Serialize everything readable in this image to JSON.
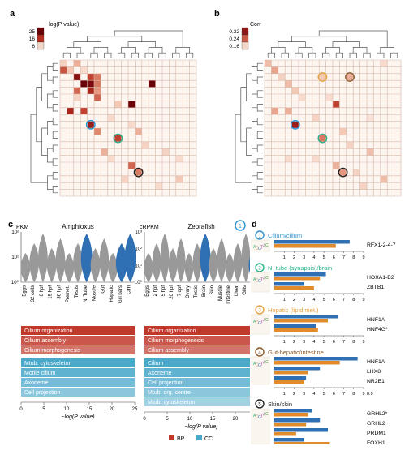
{
  "panel_a": {
    "label": "a",
    "legend_title": "−log(P value)",
    "legend_ticks": [
      "25",
      "16",
      "6"
    ],
    "legend_colors": [
      "#6a0008",
      "#b83024",
      "#f3d6c8"
    ],
    "n": 20,
    "circles": [
      {
        "id": 1,
        "r": 9,
        "c": 4,
        "color": "#2f94d6"
      },
      {
        "id": 2,
        "r": 11,
        "c": 8,
        "color": "#2bb08a"
      },
      {
        "id": 5,
        "r": 16,
        "c": 11,
        "color": "#222"
      }
    ],
    "cells": [
      [
        0,
        0,
        0.2
      ],
      [
        0,
        2,
        0.35
      ],
      [
        1,
        0,
        0.65
      ],
      [
        1,
        1,
        0.25
      ],
      [
        1,
        3,
        0.15
      ],
      [
        2,
        2,
        0.9
      ],
      [
        2,
        4,
        0.7
      ],
      [
        2,
        5,
        0.55
      ],
      [
        3,
        3,
        1.0
      ],
      [
        3,
        4,
        0.95
      ],
      [
        3,
        5,
        0.55
      ],
      [
        3,
        13,
        1.0
      ],
      [
        4,
        2,
        0.6
      ],
      [
        4,
        4,
        0.8
      ],
      [
        4,
        5,
        0.45
      ],
      [
        5,
        2,
        0.2
      ],
      [
        5,
        5,
        0.6
      ],
      [
        6,
        8,
        0.25
      ],
      [
        6,
        10,
        1.0
      ],
      [
        7,
        1,
        0.8
      ],
      [
        7,
        3,
        0.7
      ],
      [
        8,
        7,
        0.15
      ],
      [
        9,
        4,
        0.85
      ],
      [
        9,
        10,
        0.15
      ],
      [
        10,
        5,
        0.5
      ],
      [
        10,
        11,
        0.35
      ],
      [
        11,
        8,
        0.7
      ],
      [
        12,
        12,
        0.2
      ],
      [
        13,
        6,
        0.35
      ],
      [
        13,
        15,
        0.2
      ],
      [
        14,
        7,
        0.15
      ],
      [
        14,
        17,
        0.15
      ],
      [
        15,
        10,
        0.6
      ],
      [
        16,
        11,
        0.55
      ],
      [
        17,
        9,
        0.2
      ],
      [
        17,
        17,
        0.25
      ],
      [
        18,
        14,
        0.15
      ]
    ]
  },
  "panel_b": {
    "label": "b",
    "legend_title": "Corr",
    "legend_ticks": [
      "0.32",
      "0.24",
      "0.16"
    ],
    "legend_colors": [
      "#8c1a1a",
      "#c95a4a",
      "#f3d6c8"
    ],
    "n": 20,
    "circles": [
      {
        "id": 1,
        "r": 9,
        "c": 4,
        "color": "#2f94d6"
      },
      {
        "id": 2,
        "r": 11,
        "c": 8,
        "color": "#2bb08a"
      },
      {
        "id": 3,
        "r": 2,
        "c": 8,
        "color": "#e6a23c"
      },
      {
        "id": 4,
        "r": 2,
        "c": 12,
        "color": "#8c5a2b"
      },
      {
        "id": 5,
        "r": 16,
        "c": 11,
        "color": "#222"
      }
    ],
    "cells": [
      [
        0,
        0,
        0.3
      ],
      [
        1,
        1,
        0.4
      ],
      [
        2,
        2,
        0.2
      ],
      [
        2,
        8,
        0.25
      ],
      [
        2,
        12,
        0.35
      ],
      [
        3,
        3,
        0.3
      ],
      [
        4,
        4,
        0.25
      ],
      [
        5,
        5,
        0.15
      ],
      [
        5,
        9,
        0.15
      ],
      [
        6,
        10,
        0.7
      ],
      [
        7,
        1,
        0.4
      ],
      [
        7,
        3,
        0.35
      ],
      [
        8,
        7,
        0.2
      ],
      [
        8,
        15,
        0.1
      ],
      [
        9,
        4,
        0.85
      ],
      [
        10,
        11,
        0.25
      ],
      [
        11,
        8,
        0.55
      ],
      [
        12,
        12,
        0.2
      ],
      [
        13,
        15,
        0.3
      ],
      [
        14,
        3,
        0.15
      ],
      [
        14,
        7,
        0.15
      ],
      [
        15,
        10,
        0.35
      ],
      [
        16,
        11,
        0.45
      ],
      [
        16,
        13,
        0.2
      ],
      [
        17,
        17,
        0.3
      ],
      [
        18,
        14,
        0.2
      ],
      [
        0,
        17,
        0.15
      ]
    ]
  },
  "panel_c": {
    "label": "c",
    "circle_id": "1",
    "species": [
      {
        "name": "Amphioxus",
        "unit": "PKM",
        "ymax": 100,
        "ticks": [
          "10⁰",
          "10¹",
          "10²"
        ],
        "cats": [
          "Eggs",
          "32 cells",
          "8 hpf",
          "15 hpf",
          "36 hpf",
          "Premet.",
          "Testis",
          "N. Tube",
          "Muscle",
          "Gut",
          "Hepatic",
          "Gill bars",
          "Cirri"
        ],
        "hl": [
          7,
          11,
          12
        ],
        "go": {
          "bp": [
            "Cilium organization",
            "Cilium assembly",
            "Cilium morphogenesis"
          ],
          "cc": [
            "Mtub. cytoskeleton",
            "Motile cilium",
            "Axoneme",
            "Cell projection"
          ]
        }
      },
      {
        "name": "Zebrafish",
        "unit": "cRPKM",
        "ymax": 1000,
        "ticks": [
          "10⁰",
          "10¹",
          "10²",
          "10³"
        ],
        "cats": [
          "Eggs",
          "2 hpf",
          "5 hpf",
          "20 hpf",
          "7 dpf",
          "Ovary",
          "Testis",
          "Brain",
          "Skin",
          "Muscle",
          "Intestine",
          "Liver",
          "Gills",
          "Sperm"
        ],
        "hl": [
          7,
          13
        ],
        "go": {
          "bp": [
            "Cilium organization",
            "Cilium morphogenesis",
            "Cilium assembly"
          ],
          "cc": [
            "Cilium",
            "Axoneme",
            "Cell projection",
            "Mtub. org. centre",
            "Mtub. cytoskeleton"
          ]
        }
      }
    ],
    "xaxis": "−log(P value)",
    "xaxis_max": 25,
    "xaxis_ticks": [
      0,
      5,
      10,
      15,
      20,
      25
    ],
    "legend": [
      {
        "label": "BP",
        "color": "#c0392b"
      },
      {
        "label": "CC",
        "color": "#4aa8c9"
      }
    ]
  },
  "panel_d": {
    "label": "d",
    "xaxis": "z-score",
    "xaxis_ticks": [
      1,
      2,
      3,
      4,
      5,
      6,
      7,
      8,
      9
    ],
    "groups": [
      {
        "id": 1,
        "color": "#2f94d6",
        "title": "Cilium/cilium",
        "b": [
          7.6
        ],
        "o": [
          6.2
        ],
        "tf": [
          "RFX1-2-4-7"
        ]
      },
      {
        "id": 2,
        "color": "#2bb08a",
        "title": "N. tube (synapsis)/brain",
        "b": [
          5.2,
          3.0
        ],
        "o": [
          4.6,
          4.0
        ],
        "tf": [
          "HOXA1-B2",
          "ZBTB1"
        ]
      },
      {
        "id": 3,
        "color": "#e6a23c",
        "title": "Hepatic (lipid met.)",
        "b": [
          6.4,
          4.2
        ],
        "o": [
          5.4,
          4.4
        ],
        "tf": [
          "HNF1A",
          "HNF4G*"
        ]
      },
      {
        "id": 4,
        "color": "#8c5a2b",
        "title": "Gut-hepatic/intestine",
        "b": [
          8.4,
          4.6,
          3.2
        ],
        "o": [
          6.6,
          3.4,
          3.0
        ],
        "tf": [
          "HNF1A",
          "LHX8",
          "NR2E1"
        ],
        "note": "8.9"
      },
      {
        "id": 5,
        "color": "#222",
        "title": "Skin/skin",
        "b": [
          3.8,
          4.6,
          5.4,
          3.0
        ],
        "o": [
          3.4,
          3.2,
          2.2,
          5.6
        ],
        "tf": [
          "GRHL2*",
          "GRHL2",
          "PRDM1",
          "FOXH1"
        ]
      }
    ]
  }
}
